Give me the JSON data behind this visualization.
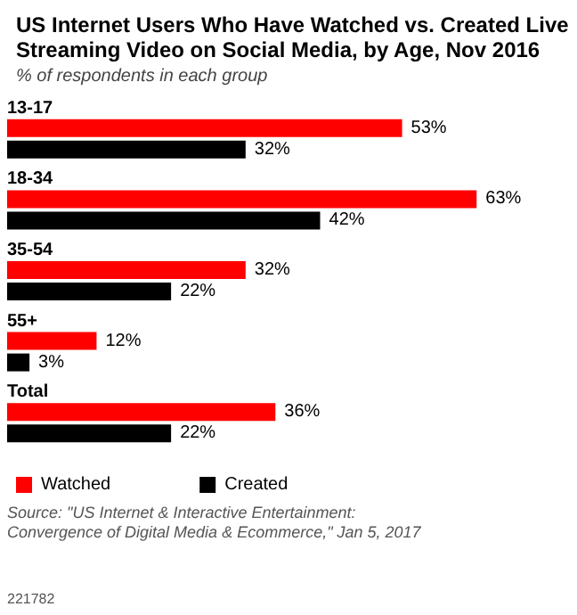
{
  "chart_data": {
    "type": "bar",
    "orientation": "horizontal",
    "title": "US Internet Users Who Have Watched vs. Created Live Streaming Video on Social Media, by Age, Nov 2016",
    "subtitle": "% of respondents in each group",
    "categories": [
      "13-17",
      "18-34",
      "35-54",
      "55+",
      "Total"
    ],
    "series": [
      {
        "name": "Watched",
        "color": "#ff0000",
        "values": [
          53,
          63,
          32,
          12,
          36
        ],
        "value_labels": [
          "53%",
          "63%",
          "32%",
          "12%",
          "36%"
        ]
      },
      {
        "name": "Created",
        "color": "#000000",
        "values": [
          32,
          42,
          22,
          3,
          22
        ],
        "value_labels": [
          "32%",
          "42%",
          "22%",
          "3%",
          "22%"
        ]
      }
    ],
    "legend": "bottom left",
    "grid": false,
    "annotations": [
      "Source: \"US Internet & Interactive Entertainment: Convergence of Digital Media & Ecommerce,\" Jan 5, 2017",
      "221782"
    ]
  }
}
